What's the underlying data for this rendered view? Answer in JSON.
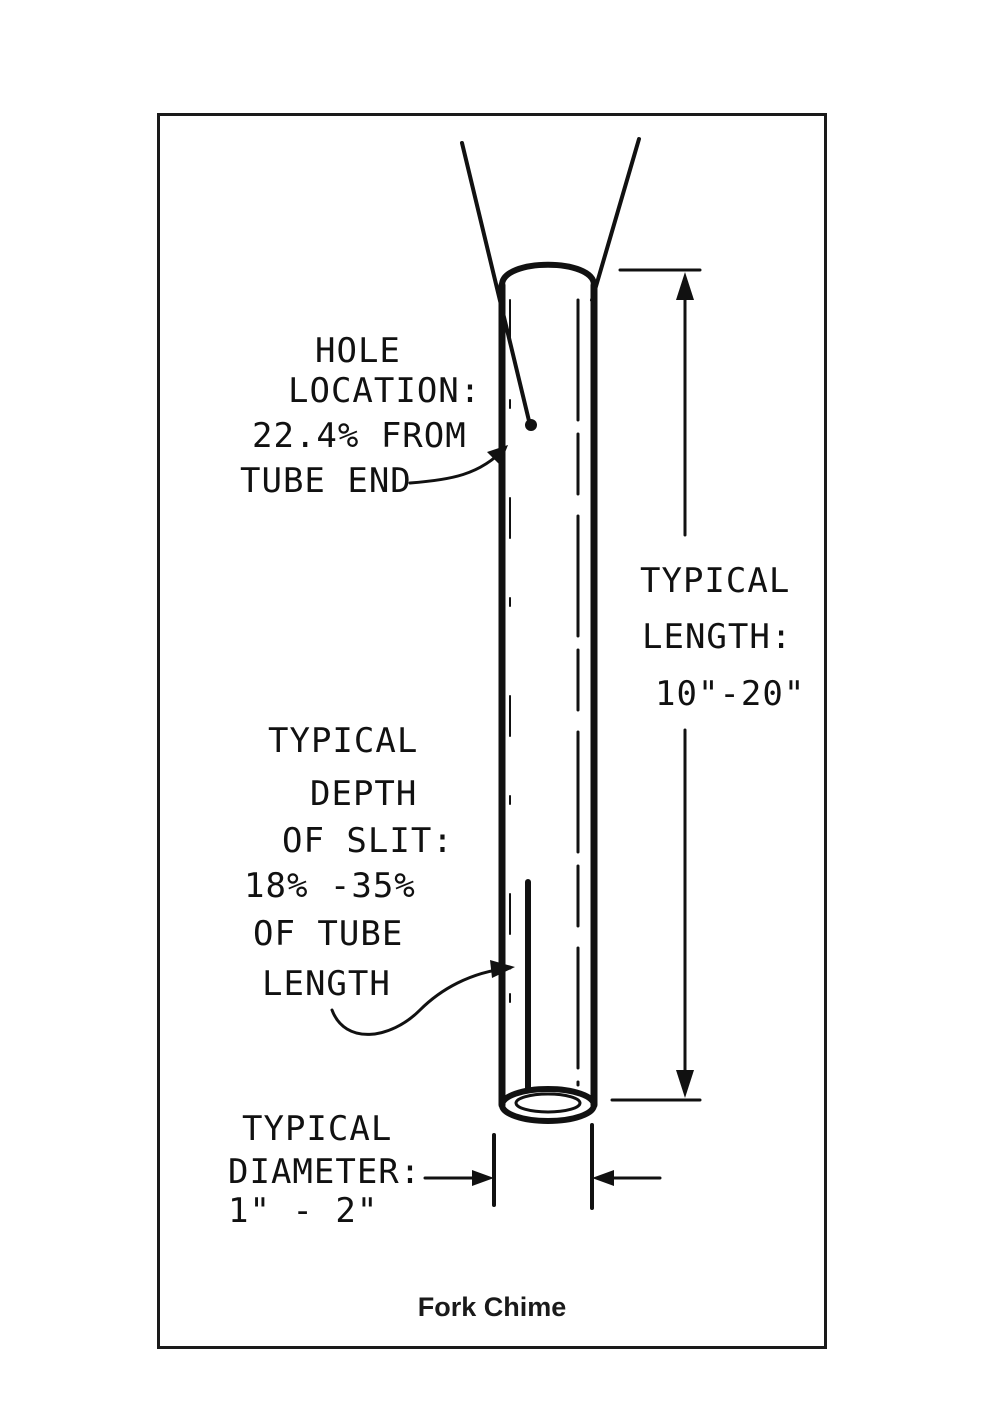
{
  "labels": {
    "hole": [
      "HOLE",
      "LOCATION:",
      "22.4% FROM",
      "TUBE END"
    ],
    "length": [
      "TYPICAL",
      "LENGTH:",
      "10\"-20\""
    ],
    "slit": [
      "TYPICAL",
      "DEPTH",
      "OF SLIT:",
      "18% -35%",
      "OF TUBE",
      "LENGTH"
    ],
    "diameter": [
      "TYPICAL",
      "DIAMETER:",
      "1\" - 2\""
    ]
  },
  "caption": "Fork Chime"
}
